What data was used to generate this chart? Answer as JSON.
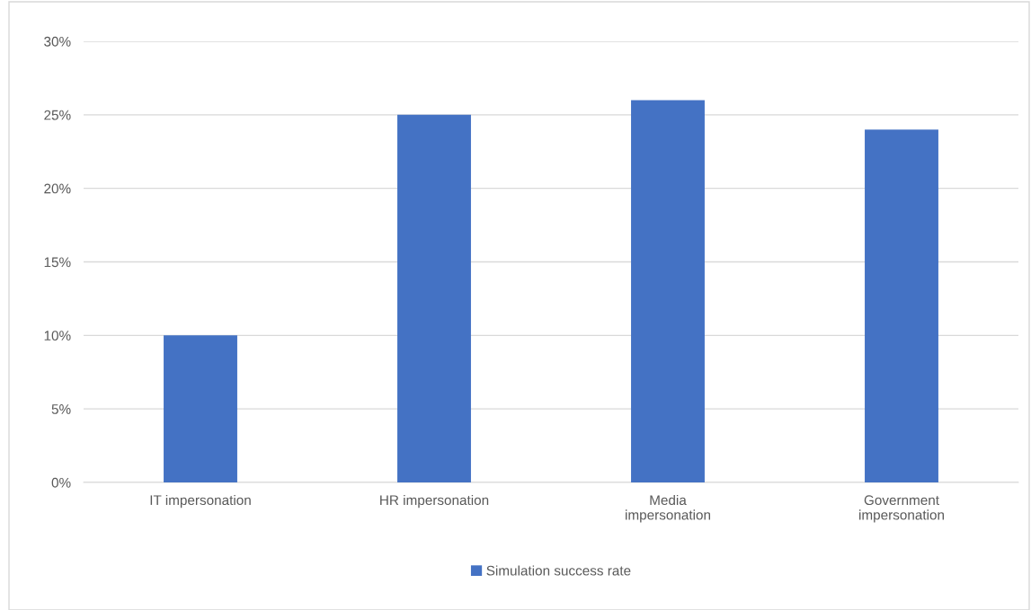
{
  "chart_data": {
    "type": "bar",
    "categories": [
      "IT impersonation",
      "HR impersonation",
      "Media impersonation",
      "Government impersonation"
    ],
    "series": [
      {
        "name": "Simulation success rate",
        "color": "#4472c4",
        "values": [
          10,
          25,
          26,
          24
        ]
      }
    ],
    "ylim": [
      0,
      30
    ],
    "yticks": [
      {
        "value": 0,
        "label": "0%"
      },
      {
        "value": 5,
        "label": "5%"
      },
      {
        "value": 10,
        "label": "10%"
      },
      {
        "value": 15,
        "label": "15%"
      },
      {
        "value": 20,
        "label": "20%"
      },
      {
        "value": 25,
        "label": "25%"
      },
      {
        "value": 30,
        "label": "30%"
      }
    ],
    "grid": "y",
    "legend": "bottom"
  }
}
